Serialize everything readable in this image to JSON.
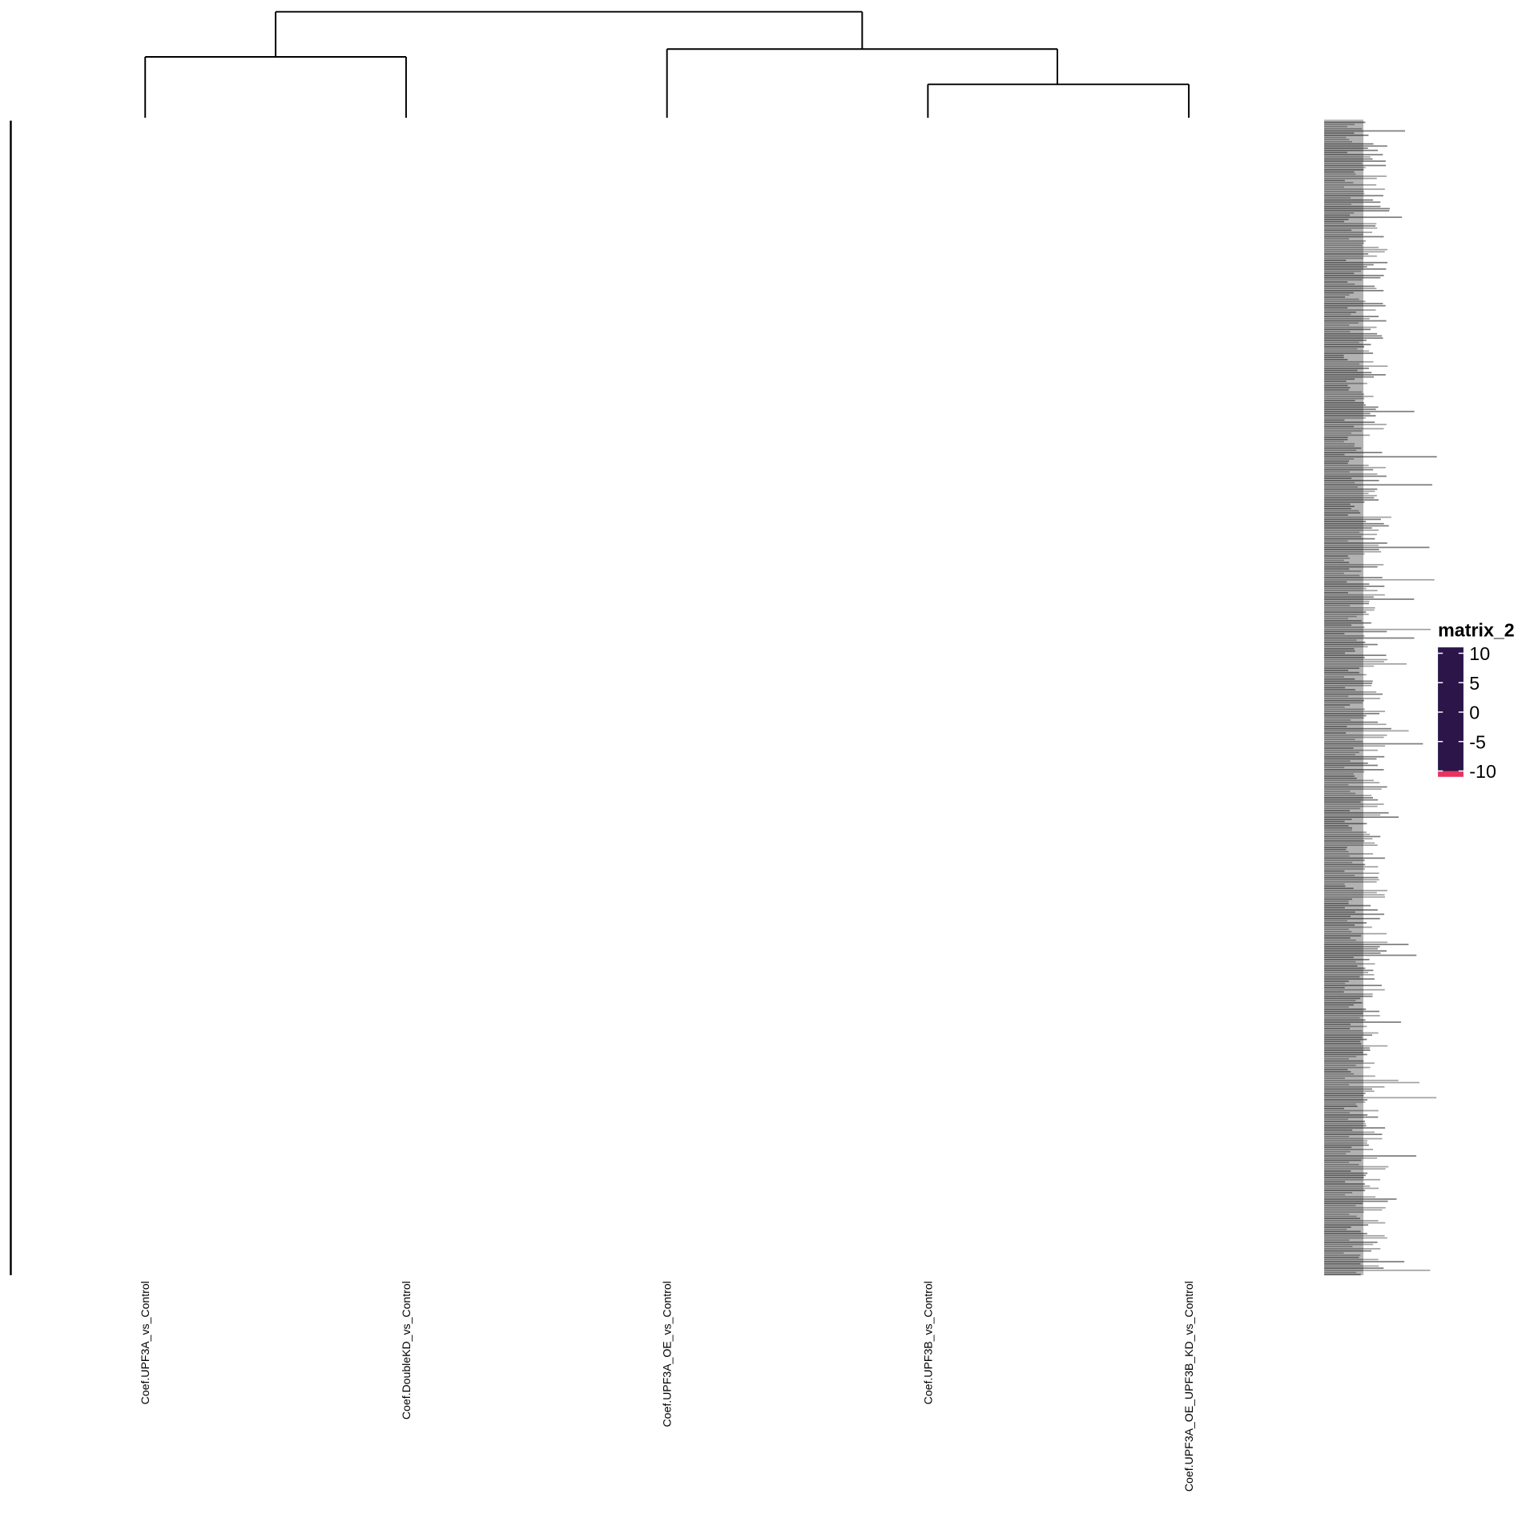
{
  "chart_data": {
    "type": "heatmap",
    "columns": [
      "Coef.UPF3A_vs_Control",
      "Coef.DoubleKD_vs_Control",
      "Coef.UPF3A_OE_vs_Control",
      "Coef.UPF3B_vs_Control",
      "Coef.UPF3A_OE_UPF3B_KD_vs_Control"
    ],
    "legend_title": "matrix_2",
    "color_lim": [
      -11,
      11
    ],
    "color_ticks": [
      10,
      5,
      0,
      -5,
      -10
    ],
    "color_stops": [
      {
        "value": -10,
        "color": "#2b1549"
      },
      {
        "value": -5,
        "color": "#3e2f72"
      },
      {
        "value": 0,
        "color": "#ffffff"
      },
      {
        "value": 5,
        "color": "#f49a7c"
      },
      {
        "value": 10,
        "color": "#e8325f"
      }
    ]
  }
}
